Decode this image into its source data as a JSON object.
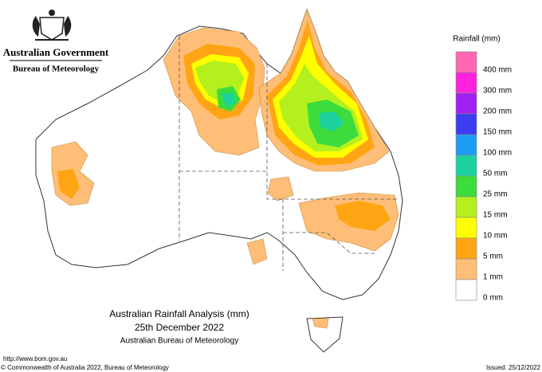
{
  "header": {
    "title": "Australian Government",
    "subtitle": "Bureau of Meteorology"
  },
  "legend": {
    "title": "Rainfall (mm)",
    "colors": [
      "#ff66b3",
      "#ff22dd",
      "#a020f0",
      "#3c3cf0",
      "#1e9bf5",
      "#1ed2a0",
      "#3cdc3c",
      "#b4f01e",
      "#ffff00",
      "#ffa514",
      "#ffbe78",
      "#ffffff"
    ],
    "labels": [
      "400 mm",
      "300 mm",
      "200 mm",
      "150 mm",
      "100 mm",
      "50 mm",
      "25 mm",
      "15 mm",
      "10 mm",
      "5 mm",
      "1 mm",
      "0 mm"
    ]
  },
  "map_title": [
    "Australian Rainfall Analysis (mm)",
    "25th December 2022",
    "Australian Bureau of Meteorology"
  ],
  "footer": {
    "url": "http://www.bom.gov.au",
    "copyright": "© Commonwealth of Australia 2022, Bureau of Meteorology",
    "issued": "Issued: 25/12/2022"
  }
}
